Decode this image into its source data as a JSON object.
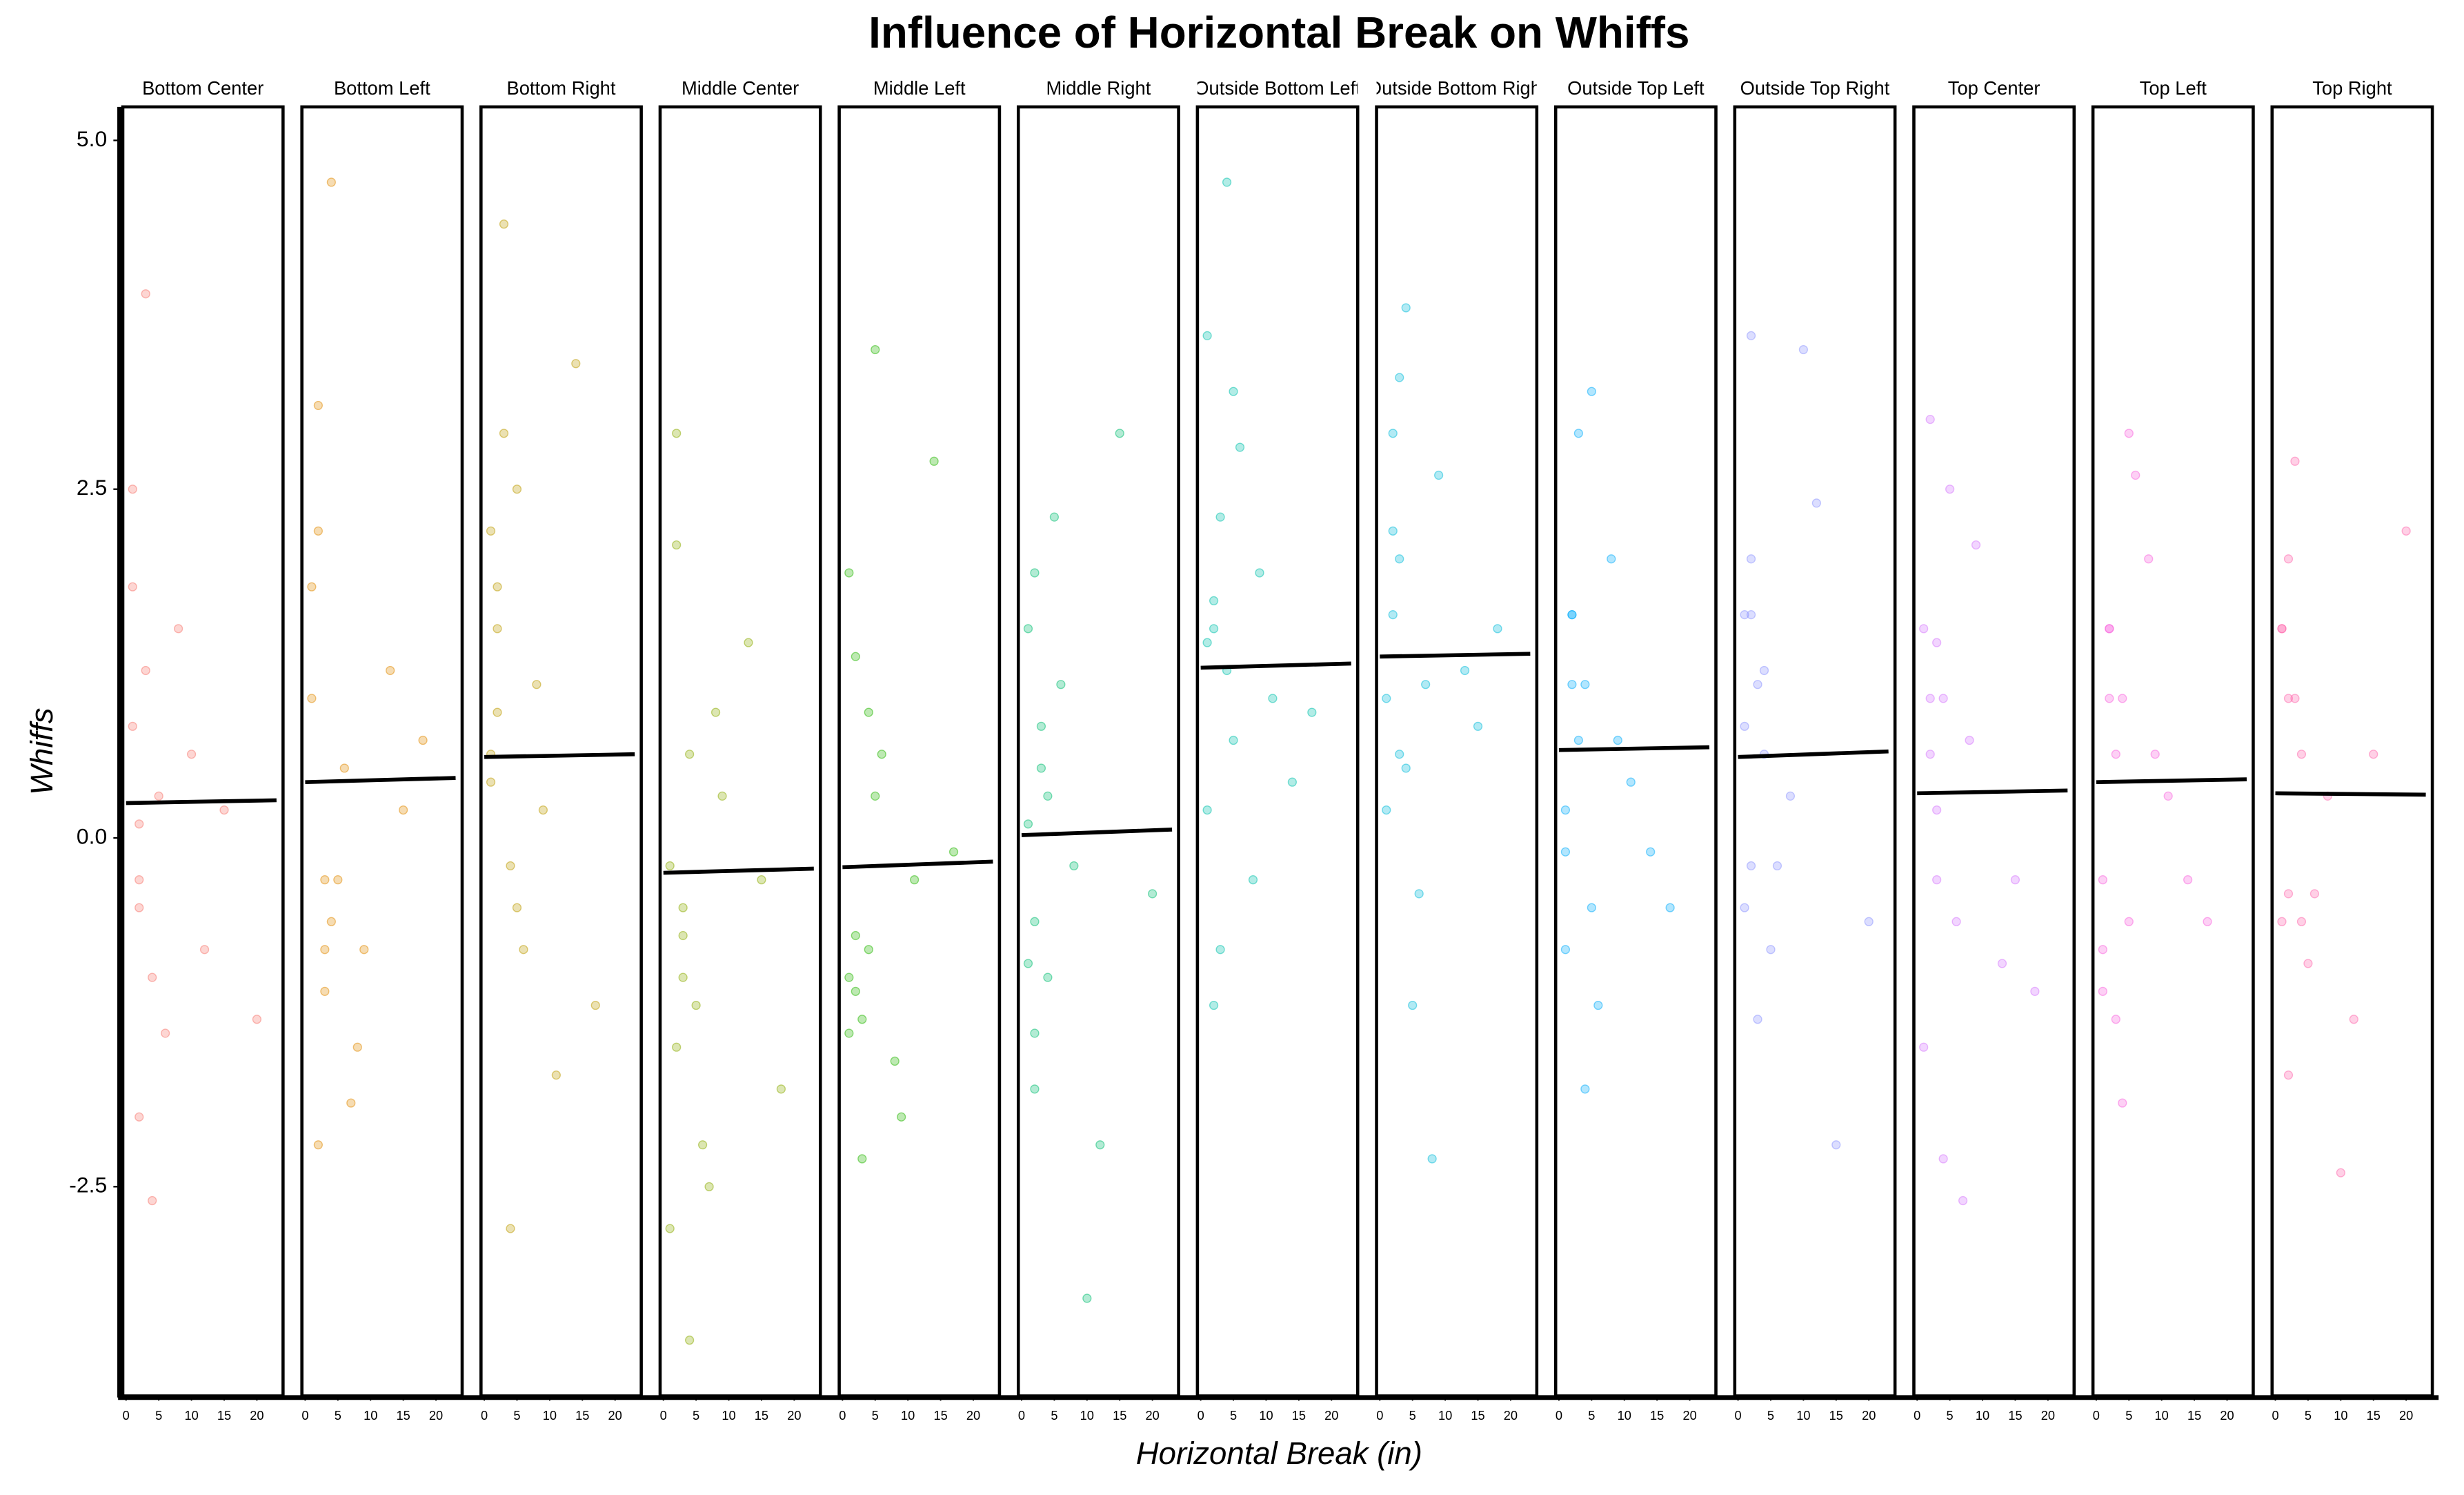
{
  "chart_data": {
    "type": "scatter",
    "title": "Influence of Horizontal Break on Whiffs",
    "x_label": "Horizontal Break (in)",
    "y_label": "Whiffs",
    "xlim": [
      -0.5,
      24
    ],
    "xticks": [
      0,
      5,
      10,
      15,
      20
    ],
    "ylim": [
      -4,
      5.24
    ],
    "yticks": [
      {
        "value": 5,
        "label": "5.0"
      },
      {
        "value": 2.5,
        "label": "2.5"
      },
      {
        "value": 0,
        "label": "0.0"
      },
      {
        "value": -2.5,
        "label": "-2.5"
      }
    ],
    "fit_x": [
      0,
      23
    ],
    "series": [
      {
        "name": "Bottom Center",
        "color": "#F8766D",
        "x": [
          1,
          2,
          3,
          4,
          1,
          2,
          5,
          8,
          12,
          3,
          2,
          6,
          10,
          15,
          1,
          4,
          20,
          2
        ],
        "y": [
          0.8,
          -0.5,
          1.2,
          -1.0,
          2.5,
          -2.0,
          0.3,
          1.5,
          -0.8,
          3.9,
          -0.3,
          -1.4,
          0.6,
          0.2,
          1.8,
          -2.6,
          -1.3,
          0.1
        ],
        "fit": [
          0.25,
          0.27
        ]
      },
      {
        "name": "Bottom Left",
        "color": "#E18A00",
        "x": [
          1,
          3,
          4,
          2,
          6,
          9,
          13,
          3,
          1,
          5,
          2,
          15,
          4,
          8,
          18,
          3,
          2,
          7
        ],
        "y": [
          1.0,
          -0.3,
          -0.6,
          3.1,
          0.5,
          -0.8,
          1.2,
          -1.1,
          1.8,
          -0.3,
          -2.2,
          0.2,
          4.7,
          -1.5,
          0.7,
          -0.8,
          2.2,
          -1.9
        ],
        "fit": [
          0.4,
          0.43
        ]
      },
      {
        "name": "Bottom Right",
        "color": "#BE9C00",
        "x": [
          2,
          1,
          4,
          3,
          5,
          8,
          1,
          11,
          3,
          6,
          2,
          14,
          4,
          9,
          2,
          17,
          5,
          1
        ],
        "y": [
          1.5,
          0.6,
          -0.2,
          2.9,
          -0.5,
          1.1,
          2.2,
          -1.7,
          4.4,
          -0.8,
          0.9,
          3.4,
          -2.8,
          0.2,
          1.8,
          -1.2,
          2.5,
          0.4
        ],
        "fit": [
          0.58,
          0.6
        ]
      },
      {
        "name": "Middle Center",
        "color": "#8CAB00",
        "x": [
          1,
          3,
          4,
          2,
          6,
          9,
          13,
          3,
          1,
          5,
          2,
          15,
          4,
          8,
          18,
          3,
          2,
          7
        ],
        "y": [
          -0.2,
          -1.0,
          0.6,
          -1.5,
          -2.2,
          0.3,
          1.4,
          -0.7,
          -2.8,
          -1.2,
          2.1,
          -0.3,
          -3.6,
          0.9,
          -1.8,
          -0.5,
          2.9,
          -2.5
        ],
        "fit": [
          -0.25,
          -0.22
        ]
      },
      {
        "name": "Middle Left",
        "color": "#24B700",
        "x": [
          2,
          1,
          4,
          3,
          5,
          8,
          1,
          11,
          3,
          6,
          2,
          14,
          4,
          9,
          2,
          17,
          5,
          1
        ],
        "y": [
          -0.7,
          -1.0,
          0.9,
          -1.3,
          0.3,
          -1.6,
          1.9,
          -0.3,
          -2.3,
          0.6,
          -1.1,
          2.7,
          -0.8,
          -2.0,
          1.3,
          -0.1,
          3.5,
          -1.4
        ],
        "fit": [
          -0.21,
          -0.17
        ]
      },
      {
        "name": "Middle Right",
        "color": "#00BE70",
        "x": [
          1,
          2,
          3,
          4,
          1,
          2,
          5,
          8,
          12,
          3,
          2,
          6,
          10,
          15,
          1,
          4,
          20,
          2
        ],
        "y": [
          0.1,
          -0.6,
          0.8,
          -1.0,
          1.5,
          -1.4,
          2.3,
          -0.2,
          -2.2,
          0.5,
          -1.8,
          1.1,
          -3.3,
          2.9,
          -0.9,
          0.3,
          -0.4,
          1.9
        ],
        "fit": [
          0.02,
          0.06
        ]
      },
      {
        "name": "Outside Bottom Left",
        "color": "#00C1AB",
        "x": [
          2,
          1,
          4,
          3,
          5,
          8,
          1,
          11,
          3,
          6,
          2,
          14,
          4,
          9,
          2,
          17,
          5,
          1
        ],
        "y": [
          1.7,
          0.2,
          1.2,
          2.3,
          0.7,
          -0.3,
          3.6,
          1.0,
          -0.8,
          2.8,
          1.5,
          0.4,
          4.7,
          1.9,
          -1.2,
          0.9,
          3.2,
          1.4
        ],
        "fit": [
          1.22,
          1.25
        ]
      },
      {
        "name": "Outside Bottom Right",
        "color": "#00BBDA",
        "x": [
          1,
          3,
          4,
          2,
          6,
          9,
          13,
          3,
          1,
          5,
          2,
          15,
          4,
          8,
          18,
          3,
          2,
          7
        ],
        "y": [
          1.0,
          2.0,
          0.5,
          1.6,
          -0.4,
          2.6,
          1.2,
          3.3,
          0.2,
          -1.2,
          2.2,
          0.8,
          3.8,
          -2.3,
          1.5,
          0.6,
          2.9,
          1.1
        ],
        "fit": [
          1.3,
          1.32
        ]
      },
      {
        "name": "Outside Top Left",
        "color": "#00ACFC",
        "x": [
          2,
          1,
          4,
          3,
          5,
          8,
          1,
          11,
          3,
          6,
          2,
          14,
          4,
          9,
          2,
          17,
          5,
          1
        ],
        "y": [
          1.6,
          -0.1,
          1.1,
          0.7,
          -0.5,
          2.0,
          -0.8,
          0.4,
          2.9,
          -1.2,
          1.6,
          -0.1,
          -1.8,
          0.7,
          1.1,
          -0.5,
          3.2,
          0.2
        ],
        "fit": [
          0.63,
          0.65
        ]
      },
      {
        "name": "Outside Top Right",
        "color": "#8B93FF",
        "x": [
          1,
          2,
          3,
          4,
          1,
          2,
          5,
          8,
          12,
          3,
          2,
          6,
          10,
          15,
          1,
          4,
          20,
          2
        ],
        "y": [
          1.6,
          -0.2,
          1.1,
          0.6,
          -0.5,
          2.0,
          -0.8,
          0.3,
          2.4,
          -1.3,
          1.6,
          -0.2,
          3.5,
          -2.2,
          0.8,
          1.2,
          -0.6,
          3.6
        ],
        "fit": [
          0.58,
          0.62
        ]
      },
      {
        "name": "Top Center",
        "color": "#D575FE",
        "x": [
          1,
          3,
          4,
          2,
          6,
          9,
          13,
          3,
          1,
          5,
          2,
          15,
          4,
          8,
          18,
          3,
          2,
          7
        ],
        "y": [
          1.5,
          -0.3,
          1.0,
          0.6,
          -0.6,
          2.1,
          -0.9,
          0.2,
          -1.5,
          2.5,
          1.0,
          -0.3,
          -2.3,
          0.7,
          -1.1,
          1.4,
          3.0,
          -2.6
        ],
        "fit": [
          0.32,
          0.34
        ]
      },
      {
        "name": "Top Left",
        "color": "#F962DD",
        "x": [
          2,
          1,
          4,
          3,
          5,
          8,
          1,
          11,
          3,
          6,
          2,
          14,
          4,
          9,
          2,
          17,
          5,
          1
        ],
        "y": [
          1.5,
          -0.3,
          1.0,
          0.6,
          -0.6,
          2.0,
          -0.8,
          0.3,
          -1.3,
          2.6,
          1.0,
          -0.3,
          -1.9,
          0.6,
          1.5,
          -0.6,
          2.9,
          -1.1
        ],
        "fit": [
          0.4,
          0.42
        ]
      },
      {
        "name": "Top Right",
        "color": "#FF65AC",
        "x": [
          1,
          2,
          3,
          4,
          1,
          2,
          5,
          8,
          12,
          3,
          2,
          6,
          10,
          15,
          1,
          4,
          20,
          2
        ],
        "y": [
          1.5,
          -0.4,
          1.0,
          0.6,
          -0.6,
          2.0,
          -0.9,
          0.3,
          -1.3,
          2.7,
          1.0,
          -0.4,
          -2.4,
          0.6,
          1.5,
          -0.6,
          2.2,
          -1.7
        ],
        "fit": [
          0.32,
          0.31
        ]
      }
    ]
  }
}
